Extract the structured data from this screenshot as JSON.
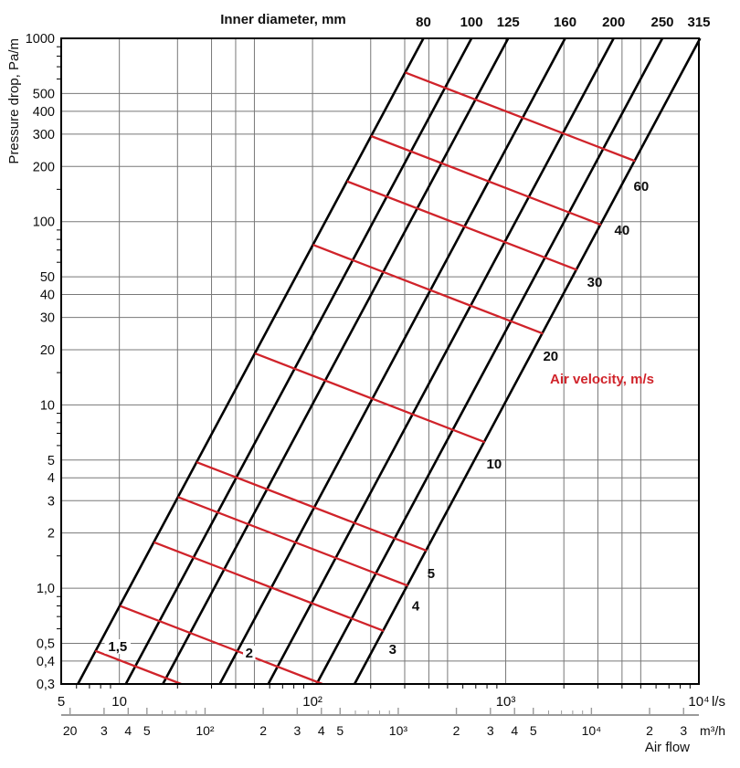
{
  "chart_data": {
    "type": "line",
    "description": "Duct pressure-drop nomogram: log-log chart of pressure drop per metre vs air flow, with black constant-inner-diameter lines and red constant-air-velocity lines",
    "titles": {
      "top": "Inner diameter, mm",
      "y": "Pressure drop, Pa/m",
      "velocity": "Air velocity, m/s",
      "air_flow": "Air flow",
      "unit_ls": "l/s",
      "unit_m3h": "m³/h"
    },
    "x_axis_ls": {
      "range": [
        5,
        10000
      ],
      "ticks": [
        {
          "v": 5,
          "label": "5"
        },
        {
          "v": 10,
          "label": "10"
        },
        {
          "v": 100,
          "label": "10²"
        },
        {
          "v": 1000,
          "label": "10³"
        },
        {
          "v": 10000,
          "label": "10⁴"
        }
      ],
      "minor_ticks": [
        6,
        7,
        8,
        9,
        20,
        30,
        40,
        50,
        60,
        70,
        80,
        90,
        200,
        300,
        400,
        500,
        600,
        700,
        800,
        900,
        2000,
        3000,
        4000,
        5000,
        6000,
        7000,
        8000,
        9000
      ]
    },
    "x_axis_m3h": {
      "range": [
        20,
        30000
      ],
      "ticks": [
        {
          "v": 20,
          "label": "20"
        },
        {
          "v": 30,
          "label": "3"
        },
        {
          "v": 40,
          "label": "4"
        },
        {
          "v": 50,
          "label": "5"
        },
        {
          "v": 100,
          "label": "10²"
        },
        {
          "v": 200,
          "label": "2"
        },
        {
          "v": 300,
          "label": "3"
        },
        {
          "v": 400,
          "label": "4"
        },
        {
          "v": 500,
          "label": "5"
        },
        {
          "v": 1000,
          "label": "10³"
        },
        {
          "v": 2000,
          "label": "2"
        },
        {
          "v": 3000,
          "label": "3"
        },
        {
          "v": 4000,
          "label": "4"
        },
        {
          "v": 5000,
          "label": "5"
        },
        {
          "v": 10000,
          "label": "10⁴"
        },
        {
          "v": 20000,
          "label": "2"
        },
        {
          "v": 30000,
          "label": "3"
        }
      ],
      "minor_ticks": [
        60,
        70,
        80,
        90,
        600,
        700,
        800,
        900,
        6000,
        7000,
        8000,
        9000
      ],
      "ls_per_m3h": 0.2777778
    },
    "y_axis": {
      "range": [
        0.3,
        1000
      ],
      "ticks": [
        {
          "v": 1000,
          "label": "1000"
        },
        {
          "v": 500,
          "label": "500"
        },
        {
          "v": 400,
          "label": "400"
        },
        {
          "v": 300,
          "label": "300"
        },
        {
          "v": 200,
          "label": "200"
        },
        {
          "v": 100,
          "label": "100"
        },
        {
          "v": 50,
          "label": "50"
        },
        {
          "v": 40,
          "label": "40"
        },
        {
          "v": 30,
          "label": "30"
        },
        {
          "v": 20,
          "label": "20"
        },
        {
          "v": 10,
          "label": "10"
        },
        {
          "v": 5,
          "label": "5"
        },
        {
          "v": 4,
          "label": "4"
        },
        {
          "v": 3,
          "label": "3"
        },
        {
          "v": 2,
          "label": "2"
        },
        {
          "v": 1,
          "label": "1,0"
        },
        {
          "v": 0.5,
          "label": "0,5"
        },
        {
          "v": 0.4,
          "label": "0,4"
        },
        {
          "v": 0.3,
          "label": "0,3"
        }
      ],
      "minor_ticks": [
        900,
        800,
        700,
        600,
        150,
        90,
        80,
        70,
        60,
        15,
        9,
        8,
        7,
        6,
        1.5,
        0.9,
        0.8,
        0.7,
        0.6
      ]
    },
    "grid_x": [
      10,
      20,
      30,
      40,
      50,
      100,
      200,
      300,
      400,
      500,
      1000,
      2000,
      3000,
      4000,
      5000
    ],
    "grid_y": [
      500,
      400,
      300,
      200,
      100,
      50,
      40,
      30,
      20,
      10,
      5,
      4,
      3,
      2,
      1,
      0.5,
      0.4
    ],
    "diameter_lines": [
      {
        "label": "80",
        "q_at_p1000": 375,
        "q_at_p03": 6.1
      },
      {
        "label": "100",
        "q_at_p1000": 665,
        "q_at_p03": 10.8
      },
      {
        "label": "125",
        "q_at_p1000": 1030,
        "q_at_p03": 16.8
      },
      {
        "label": "160",
        "q_at_p1000": 2030,
        "q_at_p03": 33.1
      },
      {
        "label": "200",
        "q_at_p1000": 3620,
        "q_at_p03": 59
      },
      {
        "label": "250",
        "q_at_p1000": 6470,
        "q_at_p03": 105
      },
      {
        "label": "315",
        "q_at_p1000": 10150,
        "q_at_p03": 165
      }
    ],
    "velocity_lines": [
      {
        "v": 1.5,
        "label": "1,5",
        "points": [
          [
            7.5,
            0.455
          ],
          [
            20.9,
            0.3
          ]
        ],
        "label_q": 9.8,
        "label_p": 0.48,
        "label_bg": true
      },
      {
        "v": 2,
        "label": "2",
        "points": [
          [
            10.1,
            0.8
          ],
          [
            112.5,
            0.3
          ]
        ],
        "label_q": 47,
        "label_p": 0.443,
        "label_bg": true
      },
      {
        "v": 3,
        "label": "3",
        "points": [
          [
            15.1,
            1.78
          ],
          [
            234,
            0.584
          ]
        ],
        "label_q": 260,
        "label_p": 0.464,
        "label_bg": false
      },
      {
        "v": 4,
        "label": "4",
        "points": [
          [
            20.1,
            3.14
          ],
          [
            312,
            1.03
          ]
        ],
        "label_q": 342,
        "label_p": 0.8,
        "label_bg": false
      },
      {
        "v": 5,
        "label": "5",
        "points": [
          [
            25.1,
            4.87
          ],
          [
            390,
            1.6
          ]
        ],
        "label_q": 411,
        "label_p": 1.2,
        "label_bg": false
      },
      {
        "v": 10,
        "label": "10",
        "points": [
          [
            50.3,
            19.1
          ],
          [
            780,
            6.26
          ]
        ],
        "label_q": 871,
        "label_p": 4.77,
        "label_bg": false
      },
      {
        "v": 20,
        "label": "20",
        "points": [
          [
            100.5,
            74.7
          ],
          [
            1559,
            24.5
          ]
        ],
        "label_q": 1710,
        "label_p": 18.5,
        "label_bg": false
      },
      {
        "v": 30,
        "label": "30",
        "points": [
          [
            150.8,
            166
          ],
          [
            2338,
            54.5
          ]
        ],
        "label_q": 2890,
        "label_p": 46.7,
        "label_bg": false
      },
      {
        "v": 40,
        "label": "40",
        "points": [
          [
            201,
            293
          ],
          [
            3118,
            96.1
          ]
        ],
        "label_q": 4000,
        "label_p": 90,
        "label_bg": false
      },
      {
        "v": 60,
        "label": "60",
        "points": [
          [
            302,
            651
          ],
          [
            4677,
            214
          ]
        ],
        "label_q": 5030,
        "label_p": 156,
        "label_bg": false
      }
    ],
    "colors": {
      "red": "#d0232a",
      "grid": "#787878",
      "axis_secondary": "#9a9a9a",
      "line_black": "#000000",
      "text": "#0d0d0d"
    }
  }
}
